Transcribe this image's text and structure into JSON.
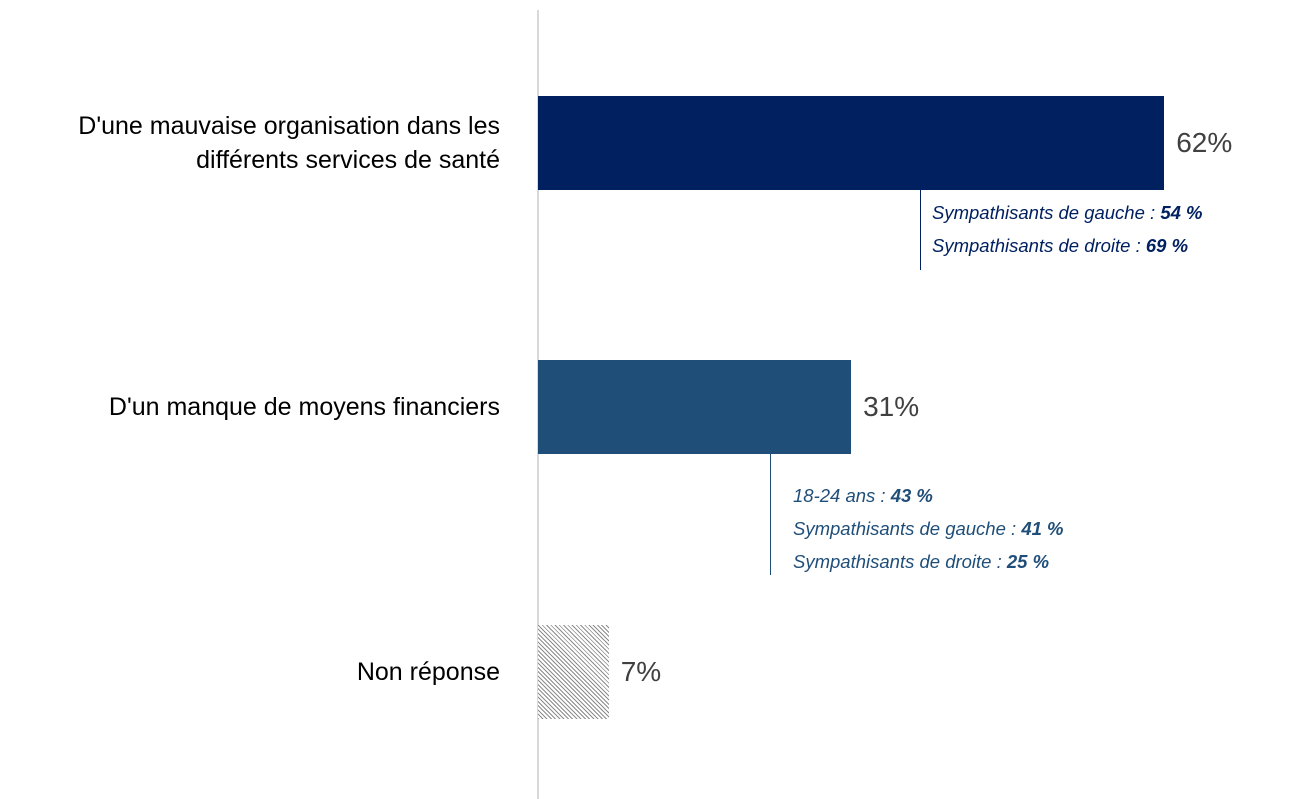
{
  "chart_data": {
    "type": "hbar",
    "categories": [
      "D'une mauvaise organisation dans les différents services de santé",
      "D'un manque de moyens financiers",
      "Non réponse"
    ],
    "values": [
      62,
      31,
      7
    ],
    "value_labels": [
      "62%",
      "31%",
      "7%"
    ],
    "colors": [
      "#002060",
      "#1f4e79",
      "#8c8c8c"
    ],
    "hatched": [
      false,
      false,
      true
    ],
    "annotations": [
      {
        "color": "#002060",
        "lines": [
          {
            "text": "Sympathisants de gauche :",
            "figure": "54 %"
          },
          {
            "text": "Sympathisants de droite :",
            "figure": "69 %"
          }
        ]
      },
      {
        "color": "#1f4e79",
        "lines": [
          {
            "text": "18-24 ans :",
            "figure": "43 %"
          },
          {
            "text": "Sympathisants de gauche :",
            "figure": "41 %"
          },
          {
            "text": "Sympathisants de droite :",
            "figure": "25 %"
          }
        ]
      }
    ]
  }
}
